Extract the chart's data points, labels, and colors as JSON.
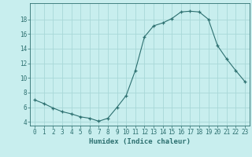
{
  "x": [
    0,
    1,
    2,
    3,
    4,
    5,
    6,
    7,
    8,
    9,
    10,
    11,
    12,
    13,
    14,
    15,
    16,
    17,
    18,
    19,
    20,
    21,
    22,
    23
  ],
  "y": [
    7.0,
    6.5,
    5.9,
    5.4,
    5.1,
    4.7,
    4.5,
    4.1,
    4.5,
    6.0,
    7.6,
    11.0,
    15.6,
    17.1,
    17.5,
    18.1,
    19.0,
    19.1,
    19.0,
    18.0,
    14.4,
    12.6,
    11.0,
    9.5
  ],
  "line_color": "#2d7070",
  "marker": "+",
  "bg_color": "#c8eeee",
  "grid_color": "#a8d8d8",
  "xlabel": "Humidex (Indice chaleur)",
  "xlim": [
    -0.5,
    23.5
  ],
  "ylim": [
    3.5,
    20.2
  ],
  "yticks": [
    4,
    6,
    8,
    10,
    12,
    14,
    16,
    18
  ],
  "xticks": [
    0,
    1,
    2,
    3,
    4,
    5,
    6,
    7,
    8,
    9,
    10,
    11,
    12,
    13,
    14,
    15,
    16,
    17,
    18,
    19,
    20,
    21,
    22,
    23
  ],
  "xtick_labels": [
    "0",
    "1",
    "2",
    "3",
    "4",
    "5",
    "6",
    "7",
    "8",
    "9",
    "10",
    "11",
    "12",
    "13",
    "14",
    "15",
    "16",
    "17",
    "18",
    "19",
    "20",
    "21",
    "22",
    "23"
  ],
  "tick_color": "#2d7070",
  "label_fontsize": 6.5,
  "tick_fontsize": 5.5
}
